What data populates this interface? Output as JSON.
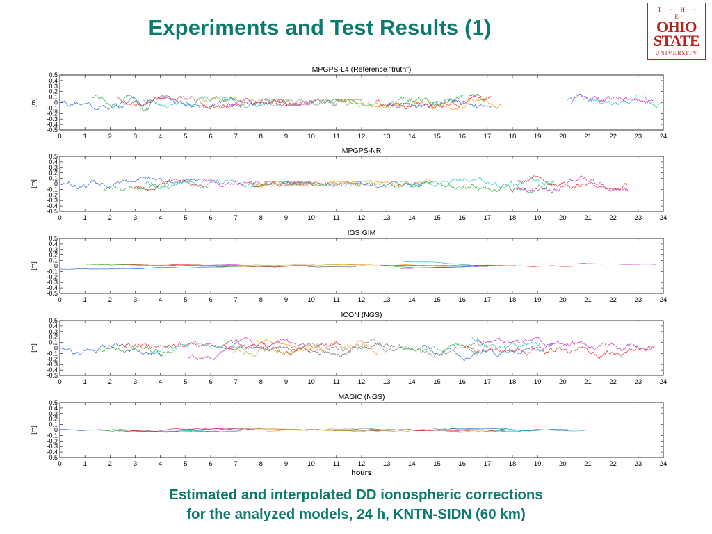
{
  "slide": {
    "title": "Experiments and Test Results (1)",
    "caption_line1": "Estimated and interpolated DD ionospheric corrections",
    "caption_line2": "for the analyzed models, 24 h, KNTN-SIDN (60 km)"
  },
  "logo": {
    "line1": "T · H · E",
    "line2": "OHIO",
    "line3": "STATE",
    "line4": "UNIVERSITY",
    "color": "#b3231e"
  },
  "colors": {
    "title": "#0e7a6e",
    "series": [
      "#1f5fd6",
      "#22a22b",
      "#e02020",
      "#19b7b7",
      "#c020c0",
      "#b4b42a",
      "#606060",
      "#ff8c00",
      "#8a8a8a"
    ]
  },
  "chart_data": [
    {
      "type": "line",
      "title": "MPGPS-L4 (Reference \"truth\")",
      "ylabel": "[m]",
      "xlabel": "",
      "xlim": [
        0,
        24
      ],
      "ylim": [
        -0.5,
        0.5
      ],
      "xticks": [
        "0",
        "1",
        "2",
        "3",
        "4",
        "5",
        "6",
        "7",
        "8",
        "9",
        "10",
        "11",
        "12",
        "13",
        "14",
        "15",
        "16",
        "17",
        "18",
        "19",
        "20",
        "21",
        "22",
        "23",
        "24"
      ],
      "yticks": [
        "0.5",
        "0.4",
        "0.3",
        "0.2",
        "0.1",
        "0",
        "-0.1",
        "-0.2",
        "-0.3",
        "-0.4",
        "-0.5"
      ],
      "grid": false,
      "noise_amplitude": 0.07,
      "series_note": "multiple satellite-pair DD series, values approx within ±0.15 m",
      "envelope": [
        [
          0,
          0.12
        ],
        [
          2,
          0.15
        ],
        [
          6,
          0.12
        ],
        [
          8,
          0.08
        ],
        [
          10,
          0.05
        ],
        [
          12,
          0.08
        ],
        [
          14,
          0.12
        ],
        [
          18,
          0.18
        ],
        [
          24,
          0.14
        ]
      ]
    },
    {
      "type": "line",
      "title": "MPGPS-NR",
      "ylabel": "[m]",
      "xlabel": "",
      "xlim": [
        0,
        24
      ],
      "ylim": [
        -0.5,
        0.5
      ],
      "xticks": [
        "0",
        "1",
        "2",
        "3",
        "4",
        "5",
        "6",
        "7",
        "8",
        "9",
        "10",
        "11",
        "12",
        "13",
        "14",
        "15",
        "16",
        "17",
        "18",
        "19",
        "20",
        "21",
        "22",
        "23",
        "24"
      ],
      "yticks": [
        "0.5",
        "0.4",
        "0.3",
        "0.2",
        "0.1",
        "0",
        "-0.1",
        "-0.2",
        "-0.3",
        "-0.4",
        "-0.5"
      ],
      "grid": false,
      "noise_amplitude": 0.06,
      "envelope": [
        [
          0,
          0.12
        ],
        [
          2,
          0.14
        ],
        [
          6,
          0.08
        ],
        [
          10,
          0.04
        ],
        [
          12,
          0.06
        ],
        [
          14,
          0.1
        ],
        [
          18,
          0.18
        ],
        [
          24,
          0.14
        ]
      ]
    },
    {
      "type": "line",
      "title": "IGS GIM",
      "ylabel": "[m]",
      "xlabel": "",
      "xlim": [
        0,
        24
      ],
      "ylim": [
        -0.5,
        0.5
      ],
      "xticks": [
        "0",
        "1",
        "2",
        "3",
        "4",
        "5",
        "6",
        "7",
        "8",
        "9",
        "10",
        "11",
        "12",
        "13",
        "14",
        "15",
        "16",
        "17",
        "18",
        "19",
        "20",
        "21",
        "22",
        "23",
        "24"
      ],
      "yticks": [
        "0.5",
        "0.4",
        "0.3",
        "0.2",
        "0.1",
        "0",
        "-0.1",
        "-0.2",
        "-0.3",
        "-0.4",
        "-0.5"
      ],
      "grid": false,
      "noise_amplitude": 0.01,
      "envelope": [
        [
          0,
          0.1
        ],
        [
          2,
          0.1
        ],
        [
          6,
          0.05
        ],
        [
          10,
          0.03
        ],
        [
          12,
          0.06
        ],
        [
          14,
          0.1
        ],
        [
          18,
          0.18
        ],
        [
          24,
          0.14
        ]
      ]
    },
    {
      "type": "line",
      "title": "ICON (NGS)",
      "ylabel": "[m]",
      "xlabel": "",
      "xlim": [
        0,
        24
      ],
      "ylim": [
        -0.5,
        0.5
      ],
      "xticks": [
        "0",
        "1",
        "2",
        "3",
        "4",
        "5",
        "6",
        "7",
        "8",
        "9",
        "10",
        "11",
        "12",
        "13",
        "14",
        "15",
        "16",
        "17",
        "18",
        "19",
        "20",
        "21",
        "22",
        "23",
        "24"
      ],
      "yticks": [
        "0.5",
        "0.4",
        "0.3",
        "0.2",
        "0.1",
        "0",
        "-0.1",
        "-0.2",
        "-0.3",
        "-0.4",
        "-0.5"
      ],
      "grid": false,
      "noise_amplitude": 0.06,
      "envelope": [
        [
          0,
          0.35
        ],
        [
          2,
          0.4
        ],
        [
          4,
          0.3
        ],
        [
          8,
          0.2
        ],
        [
          10,
          0.12
        ],
        [
          12,
          0.2
        ],
        [
          14,
          0.25
        ],
        [
          18,
          0.25
        ],
        [
          24,
          0.35
        ]
      ]
    },
    {
      "type": "line",
      "title": "MAGIC (NGS)",
      "ylabel": "[m]",
      "xlabel": "hours",
      "xlim": [
        0,
        24
      ],
      "ylim": [
        -0.5,
        0.5
      ],
      "xticks": [
        "0",
        "1",
        "2",
        "3",
        "4",
        "5",
        "6",
        "7",
        "8",
        "9",
        "10",
        "11",
        "12",
        "13",
        "14",
        "15",
        "16",
        "17",
        "18",
        "19",
        "20",
        "21",
        "22",
        "23",
        "24"
      ],
      "yticks": [
        "0.5",
        "0.4",
        "0.3",
        "0.2",
        "0.1",
        "0",
        "-0.1",
        "-0.2",
        "-0.3",
        "-0.4",
        "-0.5"
      ],
      "grid": false,
      "noise_amplitude": 0.015,
      "envelope": [
        [
          0,
          0.08
        ],
        [
          2,
          0.08
        ],
        [
          6,
          0.04
        ],
        [
          10,
          0.02
        ],
        [
          12,
          0.05
        ],
        [
          14,
          0.07
        ],
        [
          18,
          0.12
        ],
        [
          24,
          0.12
        ]
      ]
    }
  ]
}
